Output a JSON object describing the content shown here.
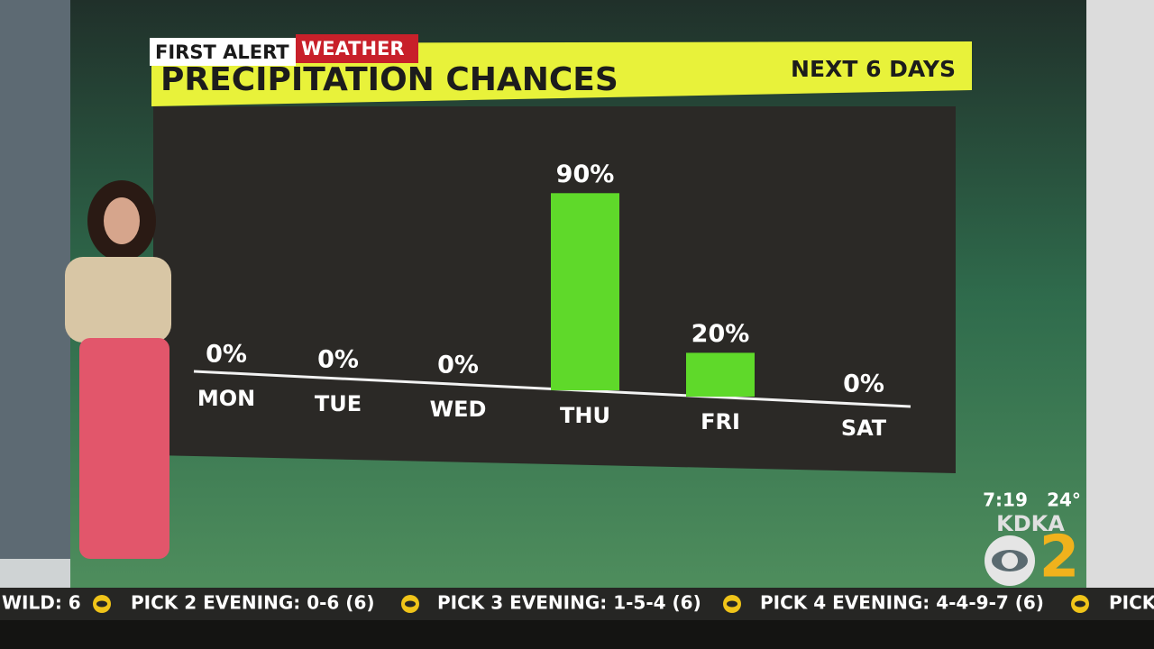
{
  "chart_data": {
    "type": "bar",
    "brand": "FIRST ALERT",
    "brand_suffix": "WEATHER",
    "title": "PRECIPITATION CHANCES",
    "subtitle": "NEXT 6 DAYS",
    "categories": [
      "MON",
      "TUE",
      "WED",
      "THU",
      "FRI",
      "SAT"
    ],
    "values": [
      0,
      0,
      0,
      90,
      20,
      0
    ],
    "value_labels": [
      "0%",
      "0%",
      "0%",
      "90%",
      "20%",
      "0%"
    ],
    "color": "#5fd92a"
  },
  "station": {
    "time": "7:19",
    "temperature": "24°",
    "call_sign": "KDKA",
    "channel": "2"
  },
  "ticker": [
    "WILD: 6",
    "PICK 2 EVENING: 0-6 (6)",
    "PICK 3 EVENING: 1-5-4 (6)",
    "PICK 4 EVENING: 4-4-9-7 (6)",
    "PICK"
  ]
}
